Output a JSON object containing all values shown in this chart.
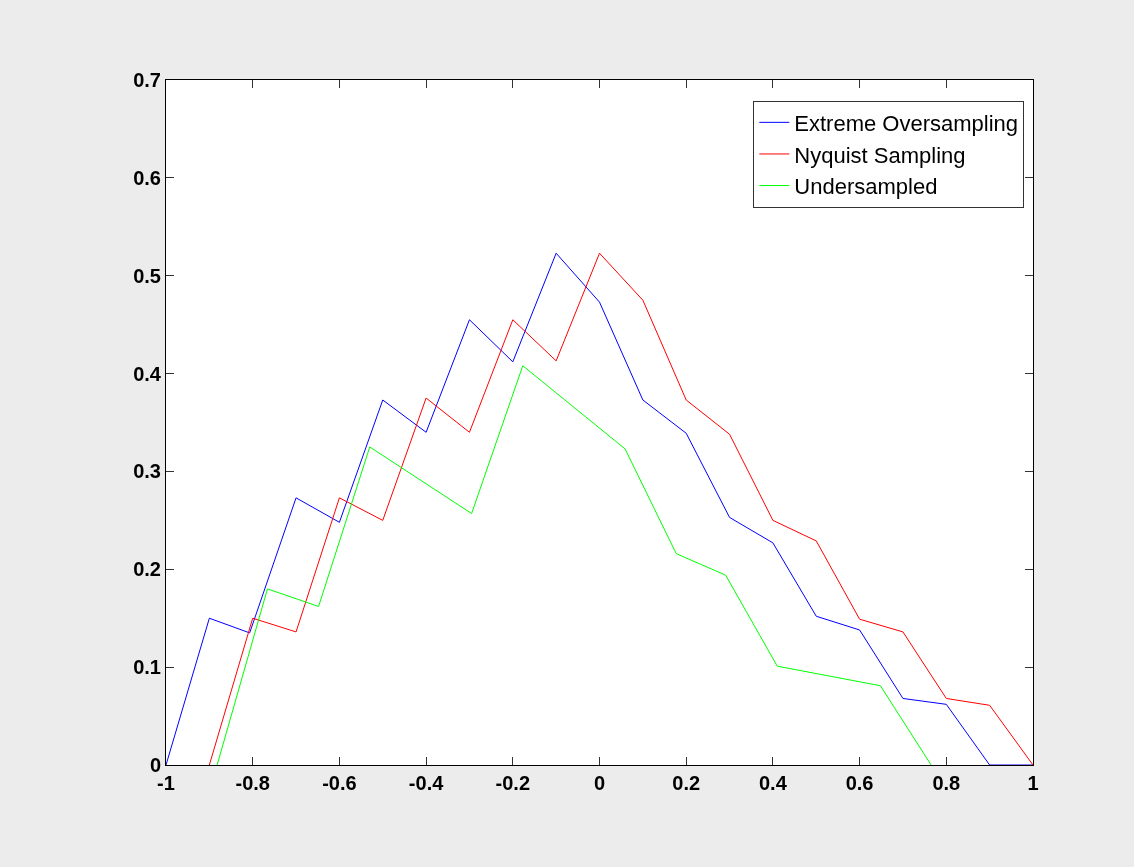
{
  "chart_data": {
    "type": "line",
    "xlim": [
      -1,
      1
    ],
    "ylim": [
      0,
      0.7
    ],
    "xticks": [
      -1,
      -0.8,
      -0.6,
      -0.4,
      -0.2,
      0,
      0.2,
      0.4,
      0.6,
      0.8,
      1
    ],
    "yticks": [
      0,
      0.1,
      0.2,
      0.3,
      0.4,
      0.5,
      0.6,
      0.7
    ],
    "grid": false,
    "legend": "top right",
    "marker": "none",
    "line_style": "solid",
    "series": [
      {
        "name": "Extreme Oversampling",
        "color": "#0000ff",
        "x": [
          -1,
          -0.9,
          -0.807,
          -0.7,
          -0.6,
          -0.5,
          -0.4,
          -0.3,
          -0.2,
          -0.1,
          0,
          0.1,
          0.2,
          0.3,
          0.4,
          0.5,
          0.6,
          0.7,
          0.8,
          0.9,
          1
        ],
        "values": [
          0,
          0.15,
          0.135,
          0.273,
          0.248,
          0.373,
          0.34,
          0.455,
          0.412,
          0.523,
          0.473,
          0.373,
          0.339,
          0.253,
          0.227,
          0.152,
          0.138,
          0.068,
          0.062,
          0,
          0
        ]
      },
      {
        "name": "Nyquist Sampling",
        "color": "#ff0000",
        "x": [
          -0.9,
          -0.8,
          -0.7,
          -0.6,
          -0.5,
          -0.4,
          -0.3,
          -0.2,
          -0.1,
          0,
          0.1,
          0.2,
          0.3,
          0.4,
          0.5,
          0.6,
          0.7,
          0.8,
          0.9,
          1
        ],
        "values": [
          0,
          0.15,
          0.136,
          0.273,
          0.25,
          0.375,
          0.34,
          0.455,
          0.413,
          0.523,
          0.475,
          0.373,
          0.338,
          0.25,
          0.229,
          0.149,
          0.136,
          0.068,
          0.061,
          0
        ]
      },
      {
        "name": "Undersampled",
        "color": "#00ff00",
        "x": [
          -0.882,
          -0.766,
          -0.648,
          -0.53,
          -0.295,
          -0.177,
          0.059,
          0.177,
          0.291,
          0.41,
          0.648,
          0.765
        ],
        "values": [
          0,
          0.18,
          0.162,
          0.325,
          0.257,
          0.408,
          0.323,
          0.216,
          0.194,
          0.101,
          0.081,
          0
        ]
      }
    ]
  }
}
